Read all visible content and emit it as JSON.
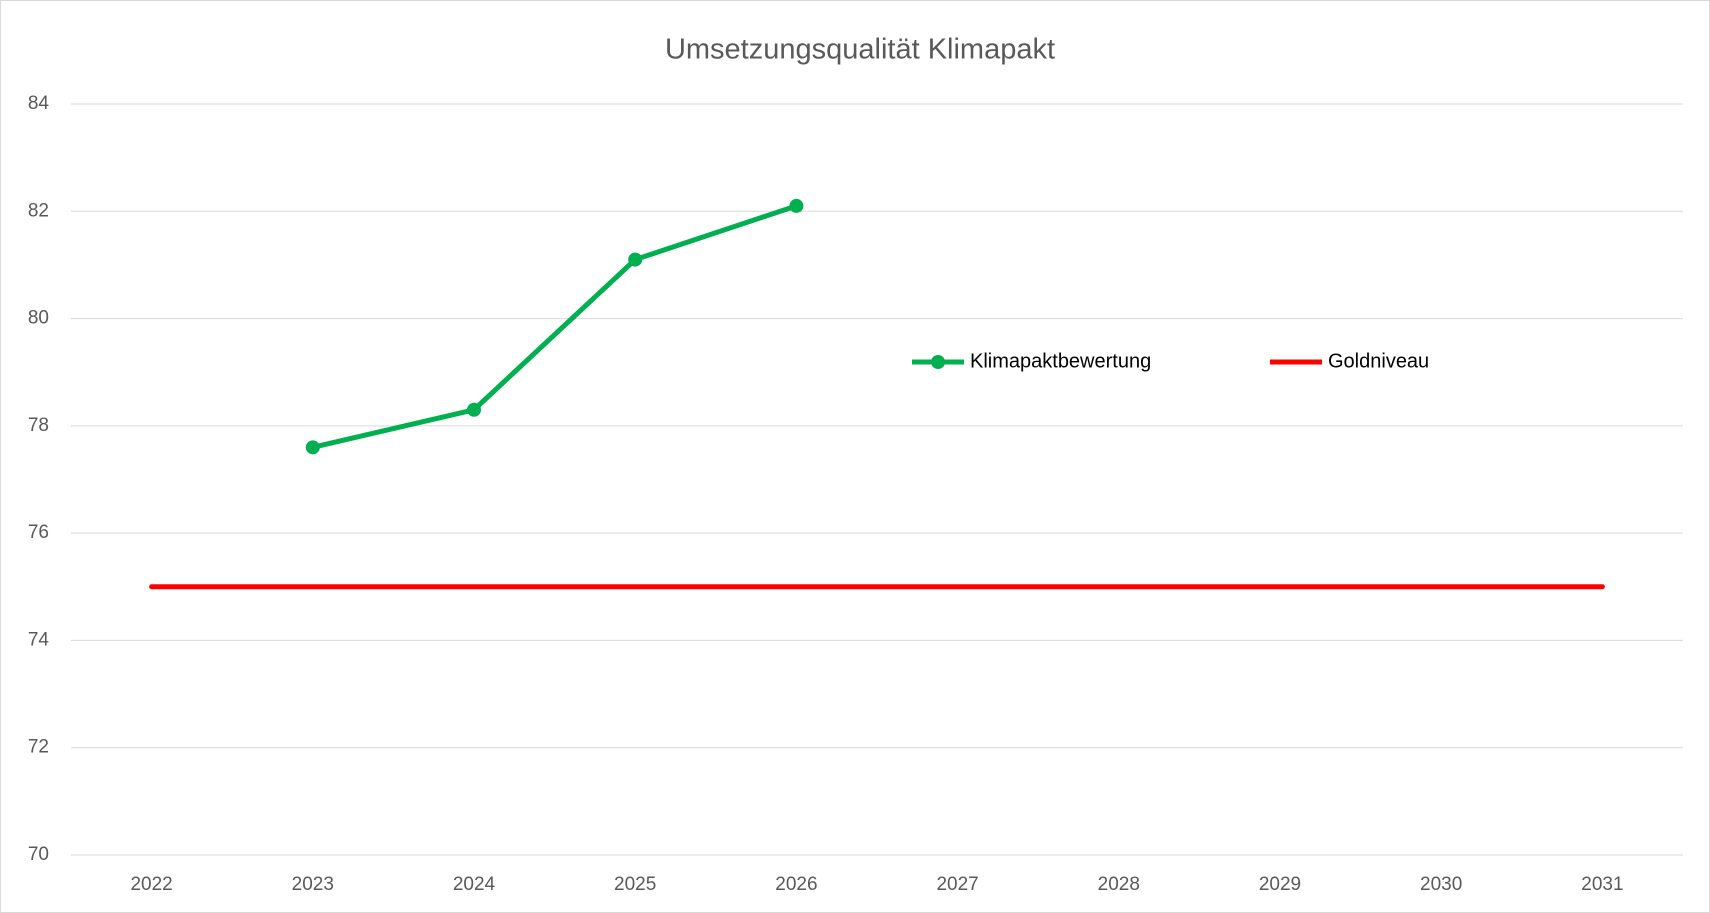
{
  "chart_data": {
    "type": "line",
    "title": "Umsetzungsqualität Klimapakt",
    "categories": [
      "2022",
      "2023",
      "2024",
      "2025",
      "2026",
      "2027",
      "2028",
      "2029",
      "2030",
      "2031"
    ],
    "series": [
      {
        "name": "Klimapaktbewertung",
        "color": "#00b050",
        "values": [
          null,
          77.6,
          78.3,
          81.1,
          82.1,
          null,
          null,
          null,
          null,
          null
        ],
        "markers": true
      },
      {
        "name": "Goldniveau",
        "color": "#ff0000",
        "values": [
          75,
          75,
          75,
          75,
          75,
          75,
          75,
          75,
          75,
          75
        ],
        "markers": false
      }
    ],
    "ylim": [
      70,
      84
    ],
    "yticks": [
      70,
      72,
      74,
      76,
      78,
      80,
      82,
      84
    ],
    "grid": true
  }
}
